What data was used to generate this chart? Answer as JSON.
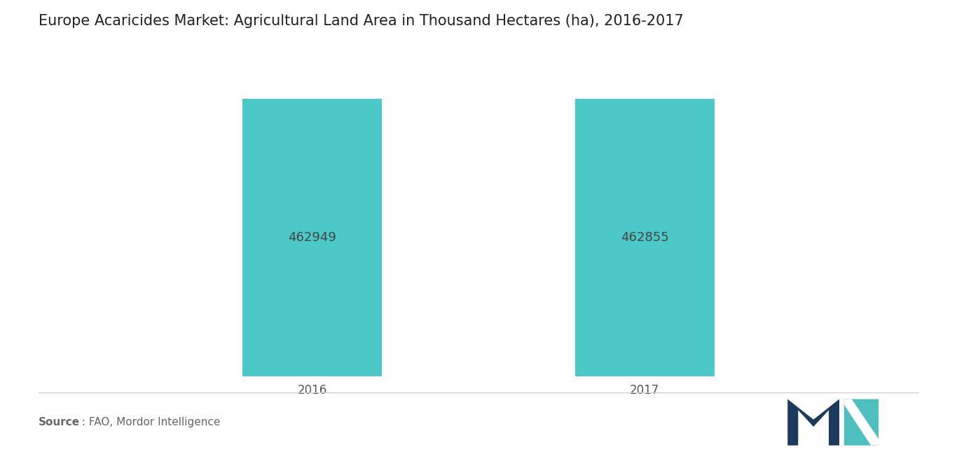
{
  "title": "Europe Acaricides Market: Agricultural Land Area in Thousand Hectares (ha), 2016-2017",
  "categories": [
    "2016",
    "2017"
  ],
  "values": [
    462949,
    462855
  ],
  "bar_color": "#4DC8C8",
  "label_color": "#444444",
  "label_fontsize": 13,
  "title_fontsize": 15,
  "tick_fontsize": 12,
  "source_bold": "Source",
  "source_rest": " : FAO, Mordor Intelligence",
  "background_color": "#ffffff",
  "ylim": [
    0,
    520000
  ],
  "bar_positions": [
    0,
    1
  ],
  "bar_width": 0.42,
  "xlim": [
    -0.45,
    1.45
  ]
}
